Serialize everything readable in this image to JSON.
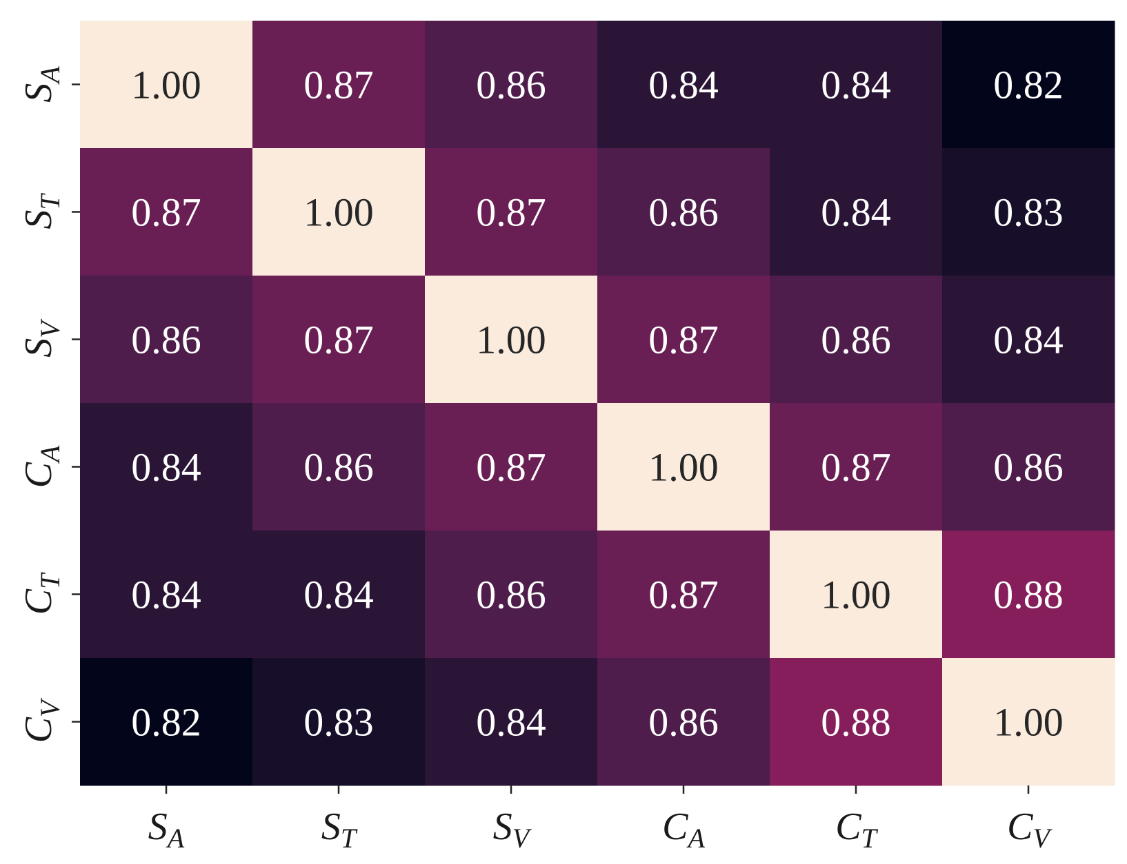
{
  "chart_data": {
    "type": "heatmap",
    "title": "",
    "xlabel": "",
    "ylabel": "",
    "labels": [
      {
        "main": "S",
        "sub": "A"
      },
      {
        "main": "S",
        "sub": "T"
      },
      {
        "main": "S",
        "sub": "V"
      },
      {
        "main": "C",
        "sub": "A"
      },
      {
        "main": "C",
        "sub": "T"
      },
      {
        "main": "C",
        "sub": "V"
      }
    ],
    "values": [
      [
        1.0,
        0.87,
        0.86,
        0.84,
        0.84,
        0.82
      ],
      [
        0.87,
        1.0,
        0.87,
        0.86,
        0.84,
        0.83
      ],
      [
        0.86,
        0.87,
        1.0,
        0.87,
        0.86,
        0.84
      ],
      [
        0.84,
        0.86,
        0.87,
        1.0,
        0.87,
        0.86
      ],
      [
        0.84,
        0.84,
        0.86,
        0.87,
        1.0,
        0.88
      ],
      [
        0.82,
        0.83,
        0.84,
        0.86,
        0.88,
        1.0
      ]
    ],
    "value_format": "0.00",
    "colorbar": false,
    "colormap": "rocket",
    "colors": {
      "0.82": "#03051a",
      "0.83": "#170f2a",
      "0.84": "#2a1536",
      "0.86": "#4e1d4b",
      "0.87": "#691f53",
      "0.88": "#851e5a",
      "1.00": "#faebdd"
    },
    "text_colors": {
      "dark_cell": "#ffffff",
      "light_cell": "#262626"
    }
  }
}
